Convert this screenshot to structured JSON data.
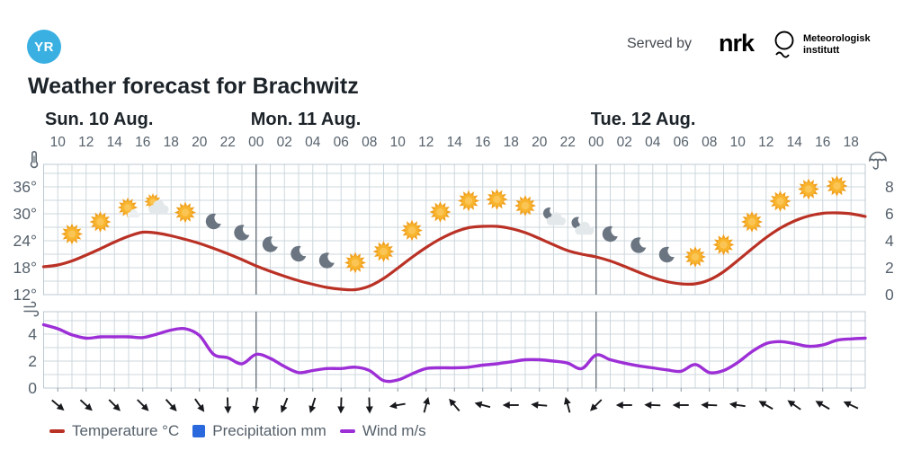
{
  "header": {
    "logo_text": "YR",
    "served_by": "Served by",
    "nrk_logo_text": "nrk",
    "met_institute_line1": "Meteorologisk",
    "met_institute_line2": "institutt",
    "title": "Weather forecast for Brachwitz"
  },
  "legend": {
    "temperature_label": "Temperature °C",
    "precipitation_label": "Precipitation mm",
    "wind_label": "Wind m/s"
  },
  "chart_data": {
    "type": "line",
    "title": "Weather forecast for Brachwitz",
    "x_start": "Sun 09:00",
    "x_end": "Tue 19:00",
    "grid": true,
    "time_axis": {
      "tick_labels": [
        "10",
        "12",
        "14",
        "16",
        "18",
        "20",
        "22",
        "00",
        "02",
        "04",
        "06",
        "08",
        "10",
        "12",
        "14",
        "16",
        "18",
        "20",
        "22",
        "00",
        "02",
        "04",
        "06",
        "08",
        "10",
        "12",
        "14",
        "16",
        "18"
      ],
      "first_tick_hour_offset": 1,
      "tick_step_hours": 2
    },
    "days": [
      {
        "label": "Sun. 10 Aug.",
        "offset": 0
      },
      {
        "label": "Mon. 11 Aug.",
        "offset": 15
      },
      {
        "label": "Tue. 12 Aug.",
        "offset": 39
      }
    ],
    "temperature": {
      "name": "Temperature °C",
      "unit": "°C",
      "color": "#ba3125",
      "axis_labels": [
        "36°",
        "30°",
        "24°",
        "18°",
        "12°"
      ],
      "axis_values": [
        36,
        30,
        24,
        18,
        12
      ],
      "ylim": [
        12,
        41
      ],
      "values_by_hour": [
        18.2,
        18.6,
        19.5,
        20.8,
        22.2,
        23.7,
        25.0,
        25.9,
        25.7,
        25.1,
        24.3,
        23.4,
        22.3,
        21.1,
        19.8,
        18.4,
        17.2,
        16.1,
        15.1,
        14.3,
        13.6,
        13.2,
        13.1,
        13.9,
        15.6,
        17.9,
        20.3,
        22.5,
        24.4,
        25.9,
        26.9,
        27.2,
        27.2,
        26.7,
        25.8,
        24.5,
        23.1,
        21.8,
        21.0,
        20.4,
        19.5,
        18.3,
        17.0,
        15.8,
        14.9,
        14.4,
        14.4,
        15.3,
        17.1,
        19.6,
        22.2,
        24.7,
        26.8,
        28.4,
        29.5,
        30.1,
        30.2,
        30.0,
        29.4
      ]
    },
    "precipitation": {
      "name": "Precipitation mm",
      "unit": "mm",
      "color": "#2968dd",
      "axis_labels": [
        "8",
        "6",
        "4",
        "2",
        "0"
      ],
      "axis_values": [
        8,
        6,
        4,
        2,
        0
      ],
      "ylim": [
        0,
        9.7
      ],
      "bars_visible": false
    },
    "wind": {
      "name": "Wind m/s",
      "unit": "m/s",
      "color": "#9d2fd6",
      "axis_labels": [
        "4",
        "2",
        "0"
      ],
      "axis_values": [
        4,
        2,
        0
      ],
      "ylim": [
        0,
        5.7
      ],
      "values_by_hour": [
        4.7,
        4.4,
        3.95,
        3.7,
        3.8,
        3.8,
        3.8,
        3.75,
        4.0,
        4.3,
        4.4,
        3.9,
        2.5,
        2.25,
        1.8,
        2.5,
        2.2,
        1.6,
        1.15,
        1.3,
        1.45,
        1.45,
        1.55,
        1.3,
        0.55,
        0.6,
        1.05,
        1.45,
        1.5,
        1.5,
        1.55,
        1.7,
        1.8,
        1.95,
        2.1,
        2.1,
        2.0,
        1.85,
        1.45,
        2.45,
        2.1,
        1.85,
        1.65,
        1.5,
        1.35,
        1.25,
        1.75,
        1.15,
        1.3,
        1.9,
        2.7,
        3.3,
        3.45,
        3.3,
        3.1,
        3.2,
        3.55,
        3.65,
        3.7
      ],
      "direction_deg_by_tick": [
        40,
        42,
        45,
        45,
        48,
        55,
        88,
        100,
        112,
        108,
        92,
        88,
        170,
        285,
        230,
        195,
        180,
        185,
        255,
        135,
        180,
        182,
        180,
        182,
        188,
        210,
        215,
        210,
        205
      ],
      "direction_note": "degrees clockwise; 0 = arrow pointing right (east)"
    },
    "weather_icons": [
      {
        "offset": 2,
        "type": "clearsky_day"
      },
      {
        "offset": 4,
        "type": "clearsky_day"
      },
      {
        "offset": 6,
        "type": "fair_day"
      },
      {
        "offset": 8,
        "type": "partlycloudy_day"
      },
      {
        "offset": 10,
        "type": "clearsky_day"
      },
      {
        "offset": 12,
        "type": "clearsky_night"
      },
      {
        "offset": 14,
        "type": "clearsky_night"
      },
      {
        "offset": 16,
        "type": "clearsky_night"
      },
      {
        "offset": 18,
        "type": "clearsky_night"
      },
      {
        "offset": 20,
        "type": "clearsky_night"
      },
      {
        "offset": 22,
        "type": "clearsky_day"
      },
      {
        "offset": 24,
        "type": "clearsky_day"
      },
      {
        "offset": 26,
        "type": "clearsky_day"
      },
      {
        "offset": 28,
        "type": "clearsky_day"
      },
      {
        "offset": 30,
        "type": "clearsky_day"
      },
      {
        "offset": 32,
        "type": "clearsky_day"
      },
      {
        "offset": 34,
        "type": "clearsky_day"
      },
      {
        "offset": 36,
        "type": "partlycloudy_night"
      },
      {
        "offset": 38,
        "type": "partlycloudy_night"
      },
      {
        "offset": 40,
        "type": "clearsky_night"
      },
      {
        "offset": 42,
        "type": "clearsky_night"
      },
      {
        "offset": 44,
        "type": "clearsky_night"
      },
      {
        "offset": 46,
        "type": "clearsky_day"
      },
      {
        "offset": 48,
        "type": "clearsky_day"
      },
      {
        "offset": 50,
        "type": "clearsky_day"
      },
      {
        "offset": 52,
        "type": "clearsky_day"
      },
      {
        "offset": 54,
        "type": "clearsky_day"
      },
      {
        "offset": 56,
        "type": "clearsky_day"
      }
    ]
  }
}
